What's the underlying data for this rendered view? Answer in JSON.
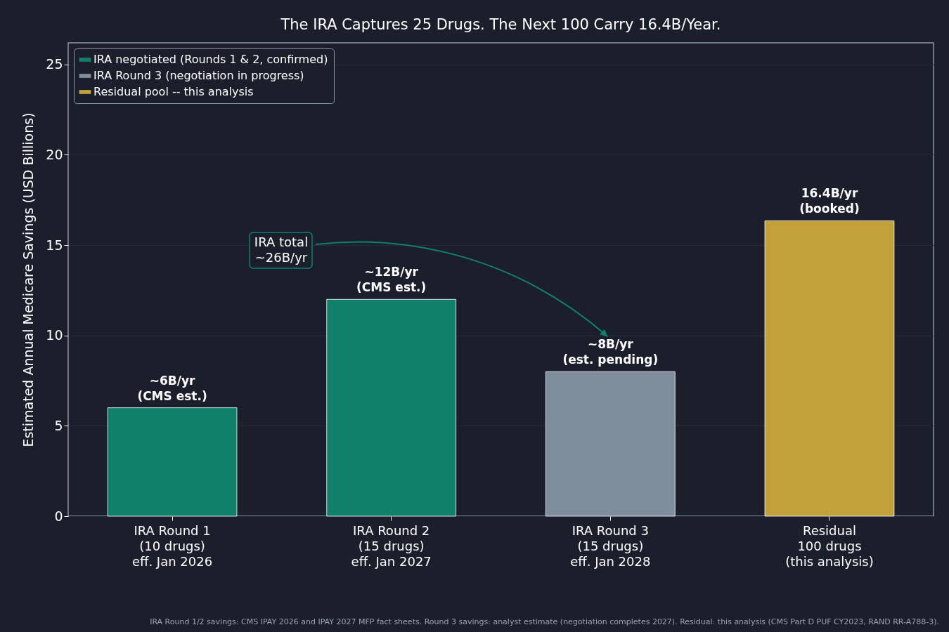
{
  "chart_data": {
    "type": "bar",
    "title": "The IRA Captures 25 Drugs. The Next 100 Carry 16.4B/Year.",
    "ylabel": "Estimated Annual Medicare Savings (USD Billions)",
    "categories": [
      "IRA Round 1\n(10 drugs)\neff. Jan 2026",
      "IRA Round 2\n(15 drugs)\neff. Jan 2027",
      "IRA Round 3\n(15 drugs)\neff. Jan 2028",
      "Residual\n100 drugs\n(this analysis)"
    ],
    "series": [
      {
        "name": "IRA negotiated (Rounds 1 & 2, confirmed)",
        "color": "#11806b",
        "values": [
          6,
          12,
          null,
          null
        ],
        "value_labels": [
          "~6B/yr\n(CMS est.)",
          "~12B/yr\n(CMS est.)",
          null,
          null
        ]
      },
      {
        "name": "IRA Round 3 (negotiation in progress)",
        "color": "#7f8e9c",
        "values": [
          null,
          null,
          8,
          null
        ],
        "value_labels": [
          null,
          null,
          "~8B/yr\n(est. pending)",
          null
        ]
      },
      {
        "name": "Residual pool -- this analysis",
        "color": "#c2a03a",
        "values": [
          null,
          null,
          null,
          16.35
        ],
        "value_labels": [
          null,
          null,
          null,
          "16.4B/yr\n(booked)"
        ]
      }
    ],
    "ylim": [
      0,
      26.2
    ],
    "yticks": [
      0,
      5,
      10,
      15,
      20,
      25
    ],
    "grid": "y",
    "legend": "top left",
    "annotations": [
      "IRA total\n~26B/yr",
      "IRA Round 1/2 savings: CMS IPAY 2026 and IPAY 2027 MFP fact sheets. Round 3 savings: analyst estimate (negotiation completes 2027). Residual: this analysis (CMS Part D PUF CY2023, RAND RR-A788-3)."
    ]
  }
}
